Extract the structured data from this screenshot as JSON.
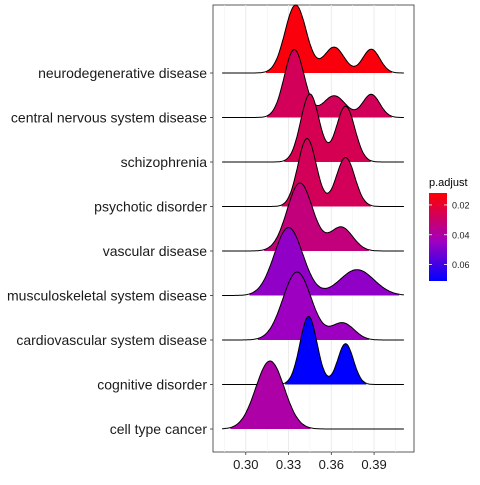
{
  "chart_data": {
    "type": "ridgeline",
    "title": "",
    "xlabel": "",
    "ylabel": "",
    "x_ticks": [
      0.3,
      0.33,
      0.36,
      0.39
    ],
    "x_tick_labels": [
      "0.30",
      "0.33",
      "0.36",
      "0.39"
    ],
    "xlim": [
      0.277,
      0.418
    ],
    "grid": true,
    "legend": {
      "title": "p.adjust",
      "placement": "right",
      "range": [
        0.012,
        0.071
      ],
      "ticks": [
        0.02,
        0.04,
        0.06
      ],
      "tick_labels": [
        "0.02",
        "0.04",
        "0.06"
      ],
      "color_low": "#ff0000",
      "color_high": "#0000ff"
    },
    "series": [
      {
        "name": "neurodegenerative disease",
        "p_adjust": 0.014,
        "peaks": [
          [
            0.335,
            0.0075,
            1.0
          ],
          [
            0.362,
            0.007,
            0.38
          ],
          [
            0.388,
            0.006,
            0.35
          ]
        ]
      },
      {
        "name": "central nervous system disease",
        "p_adjust": 0.027,
        "peaks": [
          [
            0.334,
            0.007,
            1.0
          ],
          [
            0.362,
            0.008,
            0.32
          ],
          [
            0.388,
            0.006,
            0.34
          ]
        ]
      },
      {
        "name": "schizophrenia",
        "p_adjust": 0.026,
        "peaks": [
          [
            0.345,
            0.0065,
            1.0
          ],
          [
            0.37,
            0.0065,
            0.82
          ]
        ]
      },
      {
        "name": "psychotic disorder",
        "p_adjust": 0.027,
        "peaks": [
          [
            0.343,
            0.0065,
            1.0
          ],
          [
            0.37,
            0.0065,
            0.72
          ]
        ]
      },
      {
        "name": "vascular disease",
        "p_adjust": 0.033,
        "peaks": [
          [
            0.338,
            0.009,
            1.0
          ],
          [
            0.367,
            0.008,
            0.35
          ]
        ]
      },
      {
        "name": "musculoskeletal system disease",
        "p_adjust": 0.047,
        "peaks": [
          [
            0.33,
            0.01,
            1.0
          ],
          [
            0.378,
            0.012,
            0.38
          ]
        ]
      },
      {
        "name": "cardiovascular system disease",
        "p_adjust": 0.045,
        "peaks": [
          [
            0.336,
            0.01,
            1.0
          ],
          [
            0.368,
            0.008,
            0.25
          ]
        ]
      },
      {
        "name": "cognitive disorder",
        "p_adjust": 0.071,
        "peaks": [
          [
            0.344,
            0.006,
            1.0
          ],
          [
            0.37,
            0.0055,
            0.6
          ]
        ]
      },
      {
        "name": "cell type cancer",
        "p_adjust": 0.04,
        "peaks": [
          [
            0.317,
            0.01,
            1.0
          ]
        ]
      }
    ]
  }
}
